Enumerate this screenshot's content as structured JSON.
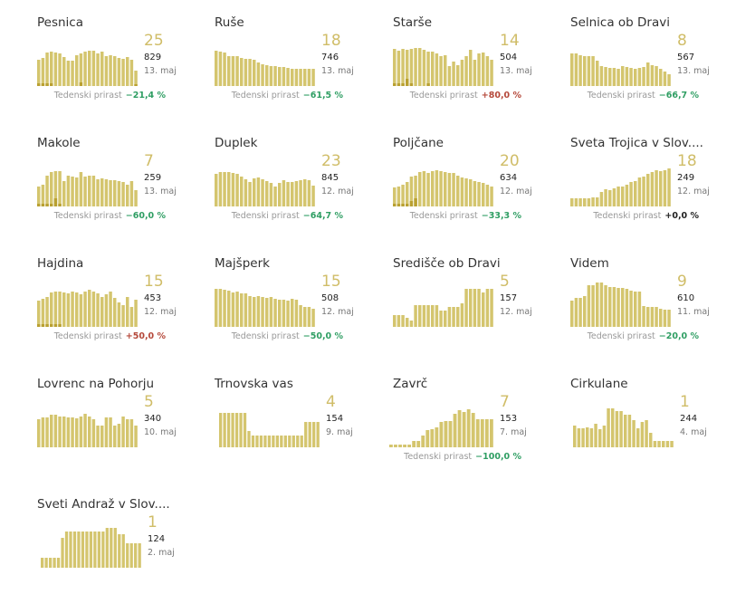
{
  "growth_label": "Tedenski prirast",
  "colors": {
    "bar": "#d4c56e",
    "bar_dark": "#b9a031",
    "growth_pos": "#b5483a",
    "growth_neg": "#2f9e63"
  },
  "chart_data": [
    {
      "type": "bar",
      "title": "Pesnica",
      "big": "25",
      "total": "829",
      "date": "13. maj",
      "growth": "−21,4 %",
      "trend": "neg",
      "values": [
        26,
        28,
        33,
        34,
        33,
        32,
        29,
        25,
        25,
        31,
        32,
        34,
        35,
        35,
        32,
        34,
        30,
        31,
        30,
        28,
        27,
        29,
        26,
        15
      ],
      "dark": [
        3,
        3,
        3,
        3,
        0,
        0,
        0,
        0,
        0,
        0,
        4,
        0,
        0,
        0,
        0,
        0,
        0,
        0,
        0,
        0,
        0,
        0,
        0,
        2
      ]
    },
    {
      "type": "bar",
      "title": "Ruše",
      "big": "18",
      "total": "746",
      "date": "13. maj",
      "growth": "−61,5 %",
      "trend": "neg",
      "values": [
        35,
        34,
        33,
        30,
        30,
        30,
        28,
        27,
        27,
        26,
        23,
        22,
        21,
        20,
        20,
        19,
        19,
        18,
        17,
        17,
        17,
        17,
        17,
        17
      ]
    },
    {
      "type": "bar",
      "title": "Starše",
      "big": "14",
      "total": "504",
      "date": "13. maj",
      "growth": "+80,0 %",
      "trend": "pos",
      "values": [
        37,
        35,
        37,
        36,
        37,
        38,
        38,
        36,
        34,
        34,
        32,
        30,
        31,
        20,
        24,
        21,
        26,
        30,
        36,
        26,
        32,
        33,
        30,
        26
      ],
      "dark": [
        3,
        3,
        3,
        7,
        3,
        0,
        0,
        0,
        3,
        0,
        0,
        0,
        0,
        0,
        0,
        0,
        0,
        0,
        0,
        0,
        0,
        0,
        0,
        0
      ]
    },
    {
      "type": "bar",
      "title": "Selnica ob Dravi",
      "big": "8",
      "total": "567",
      "date": "13. maj",
      "growth": "−66,7 %",
      "trend": "neg",
      "values": [
        32,
        32,
        31,
        30,
        30,
        30,
        25,
        20,
        19,
        18,
        18,
        17,
        20,
        19,
        18,
        17,
        18,
        19,
        23,
        21,
        20,
        17,
        14,
        12
      ]
    },
    {
      "type": "bar",
      "title": "Makole",
      "big": "7",
      "total": "259",
      "date": "13. maj",
      "growth": "−60,0 %",
      "trend": "neg",
      "values": [
        20,
        22,
        31,
        34,
        35,
        35,
        25,
        31,
        30,
        29,
        34,
        30,
        31,
        31,
        27,
        28,
        27,
        26,
        26,
        25,
        24,
        22,
        25,
        16
      ],
      "dark": [
        3,
        3,
        3,
        3,
        8,
        3,
        0,
        0,
        0,
        0,
        0,
        0,
        0,
        0,
        0,
        0,
        0,
        0,
        0,
        0,
        0,
        0,
        0,
        0
      ]
    },
    {
      "type": "bar",
      "title": "Duplek",
      "big": "23",
      "total": "845",
      "date": "12. maj",
      "growth": "−64,7 %",
      "trend": "neg",
      "values": [
        32,
        34,
        34,
        34,
        33,
        32,
        30,
        27,
        24,
        28,
        29,
        27,
        25,
        23,
        20,
        23,
        26,
        24,
        24,
        25,
        26,
        27,
        26,
        21
      ]
    },
    {
      "type": "bar",
      "title": "Poljčane",
      "big": "20",
      "total": "634",
      "date": "12. maj",
      "growth": "−33,3 %",
      "trend": "neg",
      "values": [
        19,
        20,
        22,
        24,
        30,
        31,
        34,
        35,
        33,
        35,
        36,
        35,
        34,
        33,
        33,
        31,
        29,
        28,
        27,
        25,
        24,
        23,
        22,
        20
      ],
      "dark": [
        3,
        3,
        3,
        3,
        5,
        8,
        0,
        0,
        0,
        0,
        0,
        0,
        0,
        0,
        0,
        0,
        0,
        0,
        0,
        0,
        0,
        0,
        0,
        0
      ]
    },
    {
      "type": "bar",
      "title": "Sveta Trojica v Slov....",
      "big": "18",
      "total": "249",
      "date": "12. maj",
      "growth": "+0,0 %",
      "trend": "zero",
      "values": [
        8,
        8,
        8,
        8,
        8,
        9,
        9,
        14,
        17,
        16,
        18,
        20,
        20,
        22,
        24,
        25,
        29,
        30,
        32,
        34,
        36,
        35,
        36,
        38
      ]
    },
    {
      "type": "bar",
      "title": "Hajdina",
      "big": "15",
      "total": "453",
      "date": "12. maj",
      "growth": "+50,0 %",
      "trend": "pos",
      "values": [
        26,
        28,
        30,
        34,
        35,
        35,
        34,
        33,
        35,
        34,
        32,
        35,
        37,
        35,
        33,
        30,
        32,
        35,
        29,
        24,
        22,
        30,
        20,
        27
      ],
      "dark": [
        3,
        3,
        3,
        3,
        3,
        3,
        0,
        0,
        0,
        0,
        0,
        0,
        0,
        0,
        0,
        0,
        0,
        0,
        0,
        0,
        0,
        0,
        0,
        0
      ]
    },
    {
      "type": "bar",
      "title": "Majšperk",
      "big": "15",
      "total": "508",
      "date": "12. maj",
      "growth": "−50,0 %",
      "trend": "neg",
      "values": [
        38,
        38,
        37,
        36,
        34,
        35,
        33,
        33,
        31,
        30,
        31,
        30,
        29,
        30,
        28,
        27,
        27,
        26,
        28,
        27,
        22,
        20,
        20,
        18
      ]
    },
    {
      "type": "bar",
      "title": "Središče ob Dravi",
      "big": "5",
      "total": "157",
      "date": "12. maj",
      "growth": "",
      "trend": "none",
      "values": [
        12,
        12,
        12,
        9,
        6,
        22,
        22,
        22,
        22,
        22,
        22,
        16,
        16,
        20,
        20,
        20,
        23,
        38,
        38,
        38,
        38,
        34,
        38,
        38
      ]
    },
    {
      "type": "bar",
      "title": "Videm",
      "big": "9",
      "total": "610",
      "date": "11. maj",
      "growth": "−20,0 %",
      "trend": "neg",
      "values": [
        26,
        29,
        29,
        31,
        41,
        41,
        44,
        44,
        41,
        40,
        40,
        39,
        39,
        38,
        36,
        35,
        35,
        21,
        20,
        20,
        20,
        18,
        17,
        17
      ]
    },
    {
      "type": "bar",
      "title": "Lovrenc na Pohorju",
      "big": "5",
      "total": "340",
      "date": "10. maj",
      "growth": "",
      "trend": "none",
      "values": [
        28,
        30,
        30,
        32,
        32,
        31,
        31,
        30,
        30,
        29,
        31,
        33,
        31,
        28,
        22,
        22,
        30,
        30,
        22,
        23,
        31,
        28,
        28,
        22
      ]
    },
    {
      "type": "bar",
      "title": "Trnovska vas",
      "big": "4",
      "total": "154",
      "date": "9. maj",
      "growth": "",
      "trend": "none",
      "values": [
        34,
        34,
        34,
        34,
        34,
        34,
        34,
        16,
        12,
        12,
        12,
        12,
        12,
        12,
        12,
        12,
        12,
        12,
        12,
        12,
        12,
        25,
        25,
        25,
        25
      ]
    },
    {
      "type": "bar",
      "title": "Zavrč",
      "big": "7",
      "total": "153",
      "date": "7. maj",
      "growth": "−100,0 %",
      "trend": "neg",
      "values": [
        3,
        3,
        3,
        3,
        3,
        6,
        6,
        12,
        17,
        18,
        20,
        25,
        26,
        26,
        33,
        37,
        35,
        38,
        34,
        28,
        28,
        28,
        28
      ]
    },
    {
      "type": "bar",
      "title": "Cirkulane",
      "big": "1",
      "total": "244",
      "date": "4. maj",
      "growth": "",
      "trend": "none",
      "values": [
        22,
        19,
        19,
        20,
        19,
        23,
        18,
        22,
        39,
        39,
        36,
        36,
        32,
        32,
        27,
        19,
        25,
        27,
        14,
        6,
        6,
        6,
        6,
        6
      ]
    },
    {
      "type": "bar",
      "title": "Sveti Andraž v Slov....",
      "big": "1",
      "total": "124",
      "date": "2. maj",
      "growth": "",
      "trend": "none",
      "values": [
        10,
        10,
        10,
        10,
        10,
        30,
        36,
        36,
        36,
        36,
        36,
        36,
        36,
        36,
        36,
        36,
        40,
        40,
        40,
        33,
        33,
        24,
        24,
        24,
        24
      ]
    }
  ]
}
